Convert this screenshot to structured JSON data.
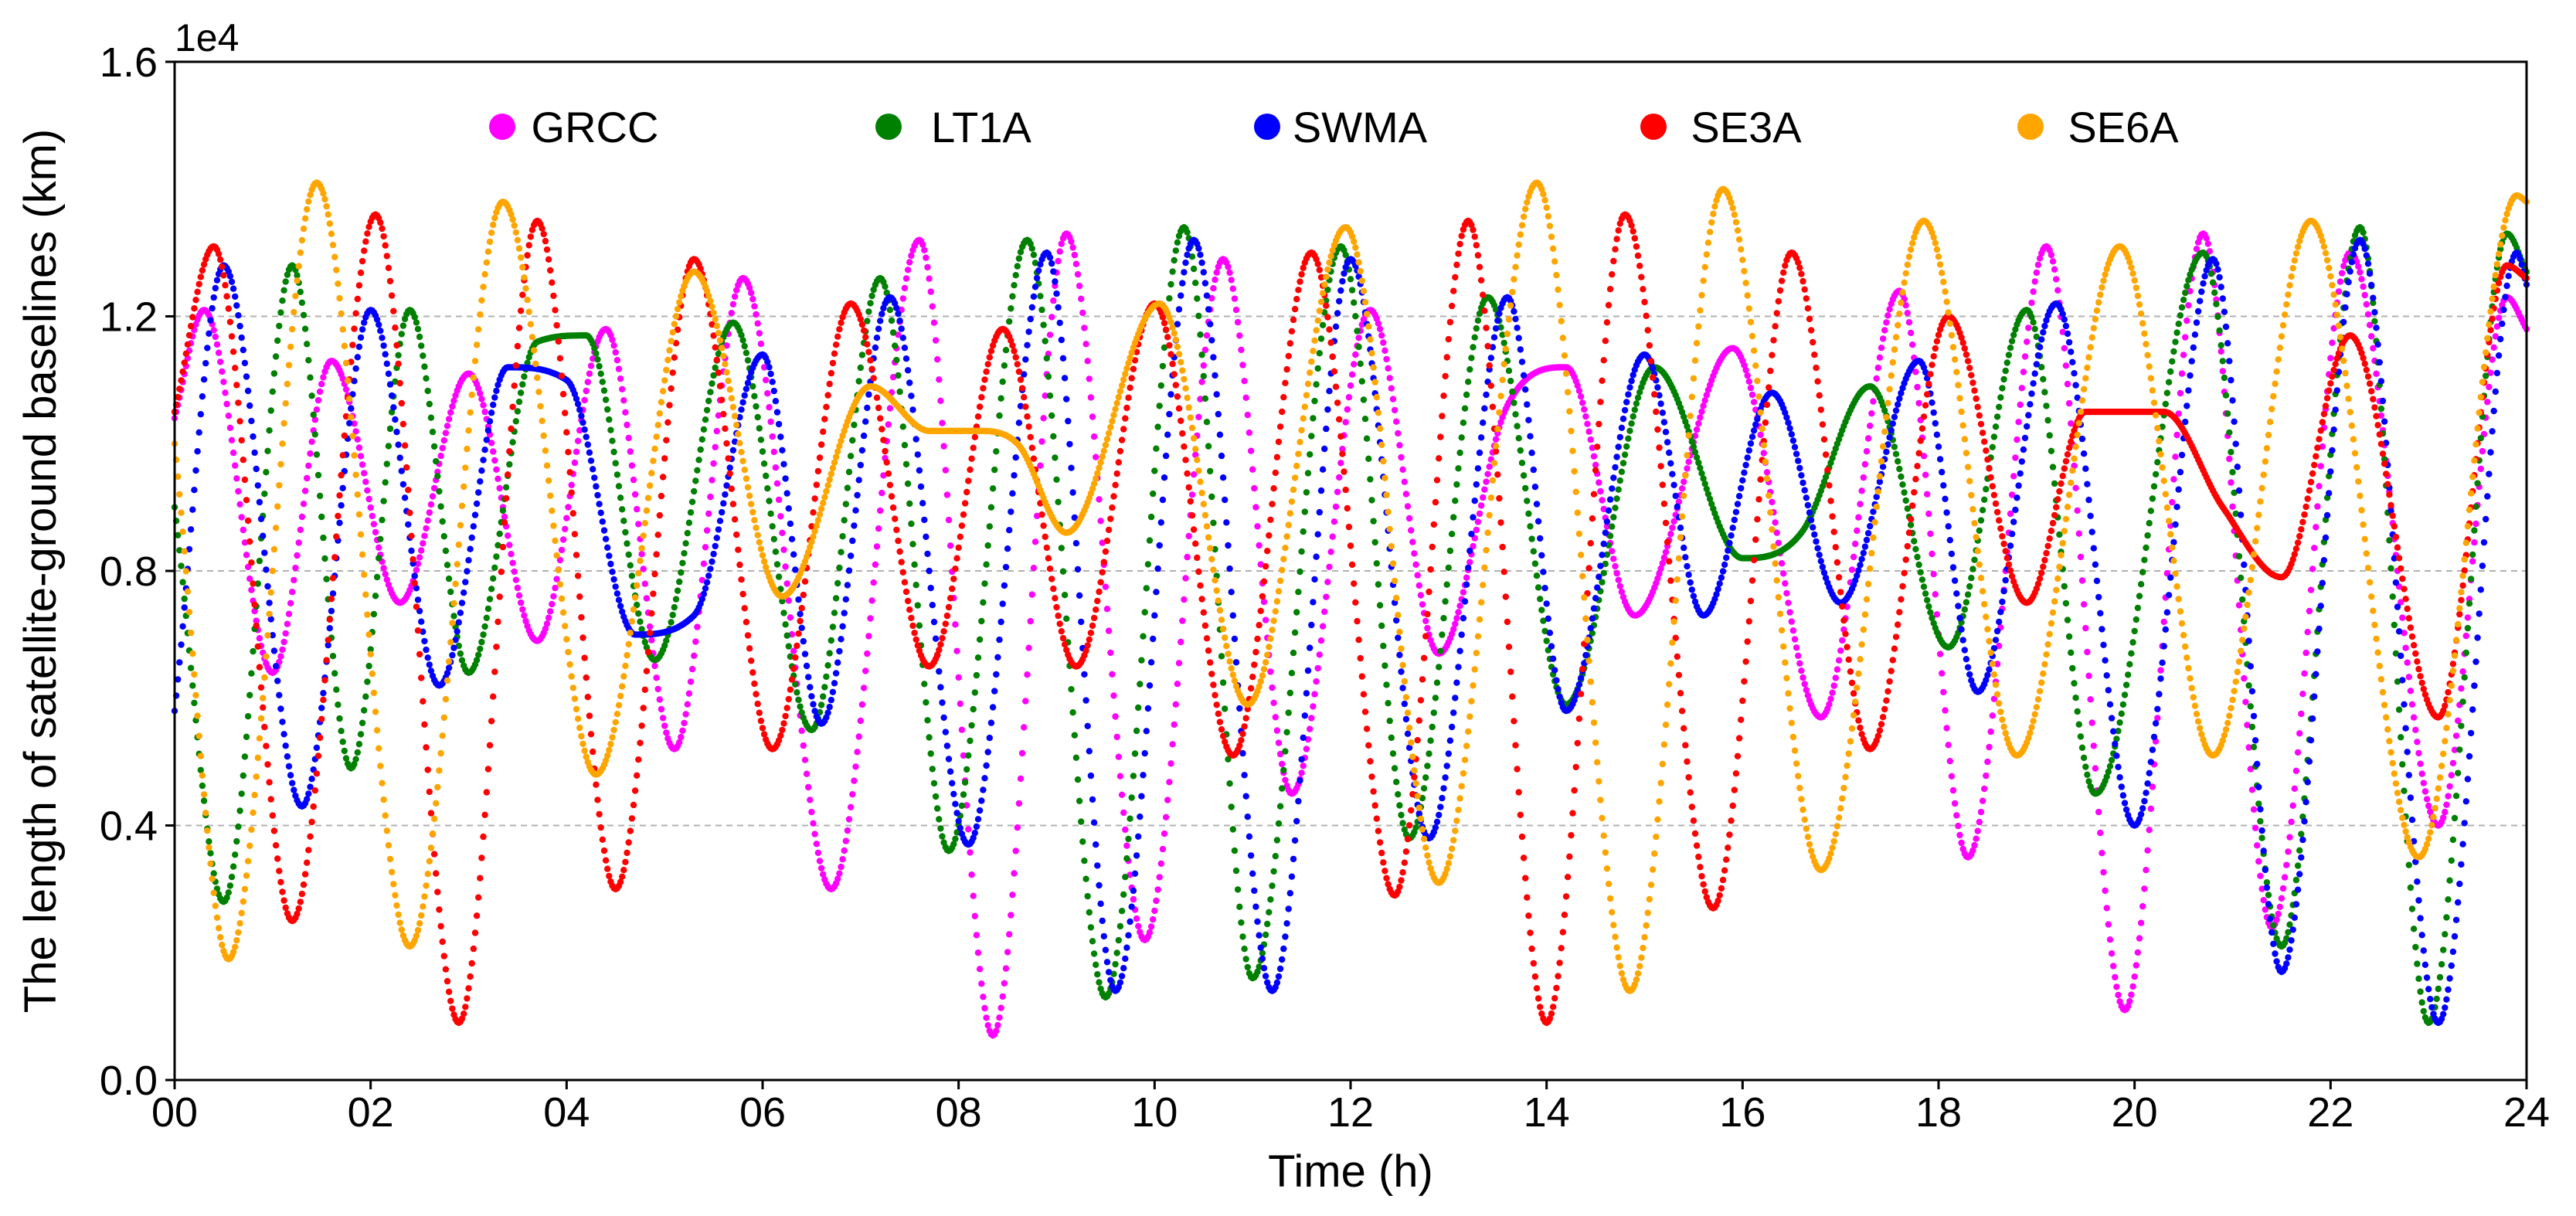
{
  "chart_data": {
    "type": "line",
    "title": "",
    "xlabel": "Time (h)",
    "ylabel": "The length of satellite-ground baselines (km)",
    "y_scale_label": "1e4",
    "xlim": [
      0,
      24
    ],
    "ylim": [
      0,
      16000
    ],
    "x_ticks": [
      0,
      2,
      4,
      6,
      8,
      10,
      12,
      14,
      16,
      18,
      20,
      22,
      24
    ],
    "x_tick_labels": [
      "00",
      "02",
      "04",
      "06",
      "08",
      "10",
      "12",
      "14",
      "16",
      "18",
      "20",
      "22",
      "24"
    ],
    "y_ticks": [
      0,
      4000,
      8000,
      12000,
      16000
    ],
    "y_tick_labels": [
      "0.0",
      "0.4",
      "0.8",
      "1.2",
      "1.6"
    ],
    "grid": "horizontal dashed at y ticks",
    "legend_position": "top",
    "series": [
      {
        "name": "GRCC",
        "color": "#ff00ff",
        "x": [
          0,
          0.3,
          1.0,
          1.6,
          2.3,
          3.0,
          3.7,
          4.4,
          5.1,
          5.8,
          6.7,
          7.6,
          8.35,
          9.1,
          9.9,
          10.7,
          11.4,
          12.2,
          12.9,
          13.6,
          14.2,
          14.9,
          15.9,
          16.8,
          17.6,
          18.3,
          19.1,
          19.9,
          20.7,
          21.4,
          22.2,
          23.1,
          23.8,
          24
        ],
        "y": [
          10400,
          12100,
          6400,
          11300,
          7500,
          11100,
          6900,
          11800,
          5200,
          12600,
          3000,
          13200,
          700,
          13300,
          2200,
          12900,
          4500,
          12100,
          6700,
          10600,
          11200,
          7300,
          11500,
          5700,
          12400,
          3500,
          13100,
          1100,
          13300,
          2400,
          13000,
          4000,
          12300,
          11800
        ]
      },
      {
        "name": "LT1A",
        "color": "#008000",
        "x": [
          0,
          0.5,
          1.2,
          1.8,
          2.4,
          3.0,
          3.7,
          4.2,
          4.9,
          5.7,
          6.5,
          7.2,
          7.9,
          8.7,
          9.5,
          10.3,
          11.0,
          11.9,
          12.6,
          13.4,
          14.2,
          15.1,
          16.0,
          16.6,
          17.3,
          18.1,
          18.9,
          19.6,
          20.7,
          21.5,
          22.3,
          23.0,
          23.8,
          24
        ],
        "y": [
          9000,
          2800,
          12800,
          4900,
          12100,
          6400,
          11600,
          11700,
          6600,
          11900,
          5500,
          12600,
          3600,
          13200,
          1300,
          13400,
          1600,
          13100,
          3800,
          12300,
          5900,
          11200,
          8200,
          8600,
          10900,
          6800,
          12100,
          4500,
          13000,
          2100,
          13400,
          900,
          13300,
          12700
        ]
      },
      {
        "name": "SWMA",
        "color": "#0000ff",
        "x": [
          0,
          0.5,
          1.3,
          2.0,
          2.7,
          3.4,
          4.0,
          4.7,
          5.3,
          6.0,
          6.6,
          7.3,
          8.1,
          8.9,
          9.6,
          10.4,
          11.2,
          12.0,
          12.8,
          13.6,
          14.2,
          15.0,
          15.6,
          16.3,
          17.0,
          17.8,
          18.4,
          19.2,
          20.0,
          20.8,
          21.5,
          22.3,
          23.1,
          23.9,
          24
        ],
        "y": [
          5800,
          12800,
          4300,
          12100,
          6200,
          11200,
          11000,
          7000,
          7300,
          11400,
          5600,
          12300,
          3700,
          13000,
          1400,
          13200,
          1400,
          12900,
          3800,
          12300,
          5800,
          11400,
          7300,
          10800,
          7500,
          11300,
          6100,
          12200,
          4000,
          12900,
          1700,
          13200,
          900,
          13000,
          12500
        ]
      },
      {
        "name": "SE3A",
        "color": "#ff0000",
        "x": [
          0,
          0.4,
          1.2,
          2.05,
          2.9,
          3.7,
          4.5,
          5.3,
          6.1,
          6.9,
          7.7,
          8.45,
          9.2,
          10.0,
          10.8,
          11.6,
          12.45,
          13.2,
          14.0,
          14.8,
          15.7,
          16.5,
          17.3,
          18.1,
          18.9,
          19.5,
          20.3,
          20.9,
          21.5,
          22.2,
          23.1,
          23.8,
          24
        ],
        "y": [
          10500,
          13100,
          2500,
          13600,
          900,
          13500,
          3000,
          12900,
          5200,
          12200,
          6500,
          11800,
          6500,
          12200,
          5100,
          13000,
          2900,
          13500,
          900,
          13600,
          2700,
          13000,
          5200,
          12000,
          7500,
          10500,
          10500,
          9000,
          7900,
          11700,
          5700,
          12800,
          12600
        ]
      },
      {
        "name": "SE6A",
        "color": "#ffa500",
        "x": [
          0,
          0.55,
          1.45,
          2.4,
          3.35,
          4.3,
          5.3,
          6.2,
          7.1,
          7.7,
          8.2,
          8.6,
          9.1,
          10.05,
          10.95,
          11.95,
          12.9,
          13.9,
          14.85,
          15.8,
          16.8,
          17.85,
          18.8,
          19.85,
          20.8,
          21.8,
          22.9,
          23.9,
          24
        ],
        "y": [
          10000,
          1900,
          14100,
          2100,
          13800,
          4800,
          12700,
          7600,
          10900,
          10200,
          10200,
          10000,
          8600,
          12200,
          5900,
          13400,
          3100,
          14100,
          1400,
          14000,
          3300,
          13500,
          5100,
          13100,
          5100,
          13500,
          3500,
          13900,
          13800
        ]
      }
    ]
  }
}
